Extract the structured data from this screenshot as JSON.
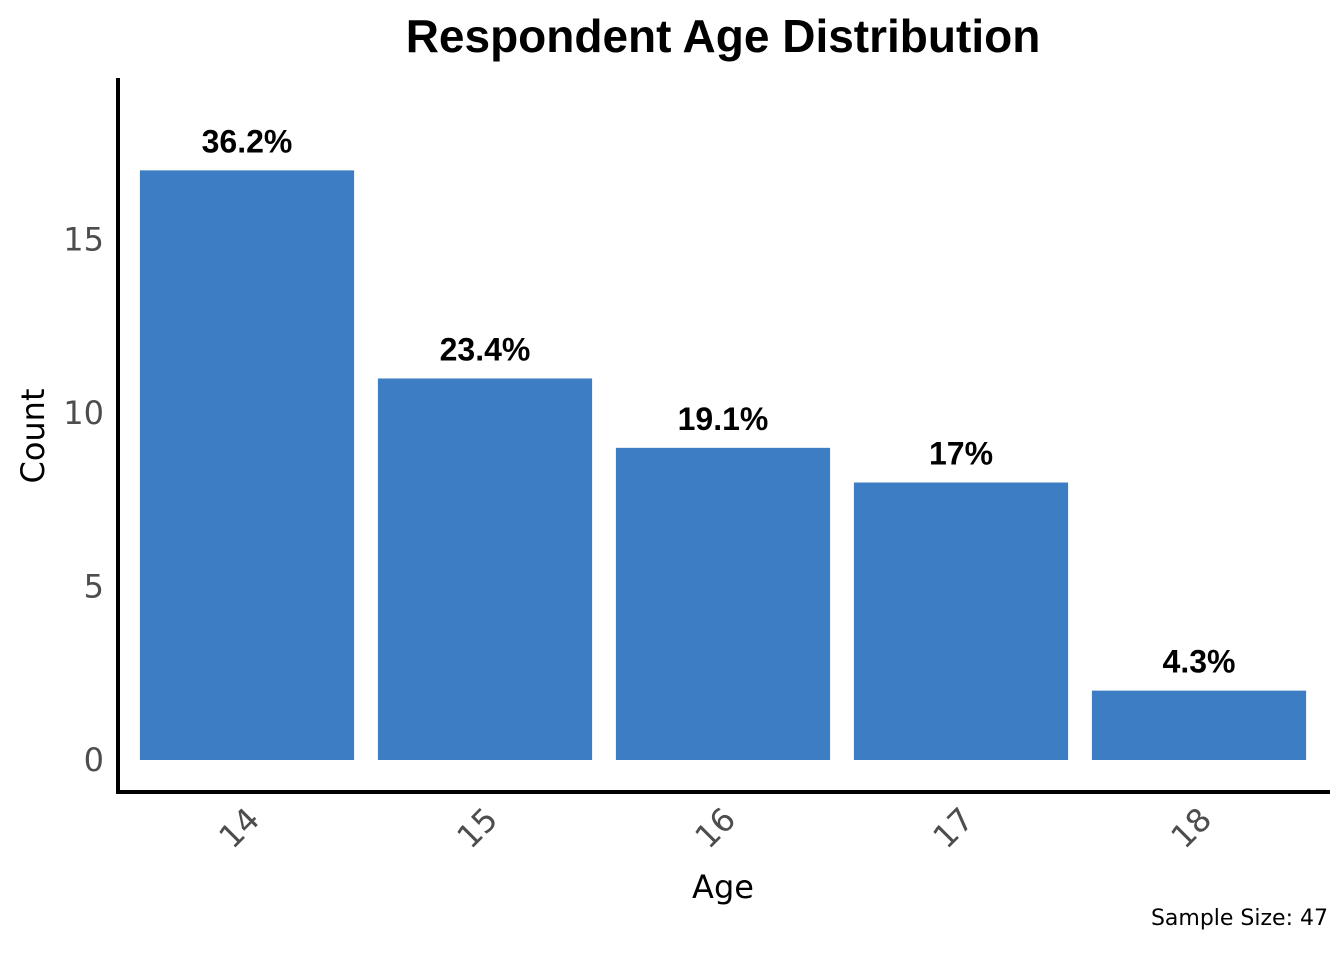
{
  "chart_data": {
    "type": "bar",
    "title": "Respondent Age Distribution",
    "xlabel": "Age",
    "ylabel": "Count",
    "categories": [
      "14",
      "15",
      "16",
      "17",
      "18"
    ],
    "values": [
      17,
      11,
      9,
      8,
      2
    ],
    "labels": [
      "36.2%",
      "23.4%",
      "19.1%",
      "17%",
      "4.3%"
    ],
    "ylim": [
      0,
      19
    ],
    "yticks": [
      0,
      5,
      10,
      15
    ],
    "bar_color": "#3d7dc4",
    "grid": false,
    "caption": "Sample Size: 47"
  }
}
